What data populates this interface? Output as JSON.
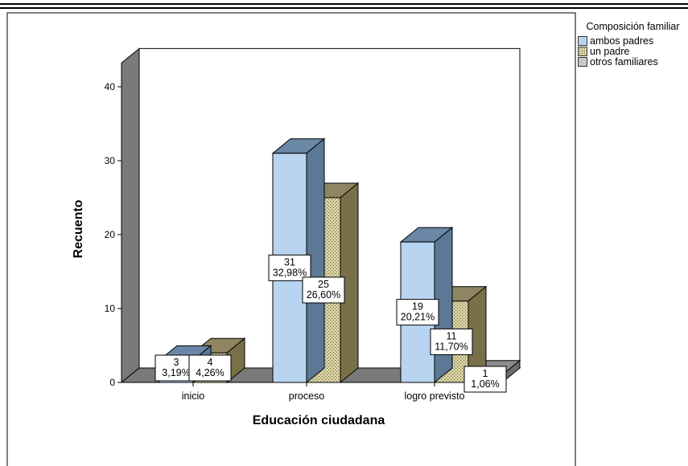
{
  "chart_data": {
    "type": "bar",
    "style": "3d-clustered",
    "xlabel": "Educación ciudadana",
    "ylabel": "Recuento",
    "ylim": [
      0,
      43
    ],
    "yticks": [
      0,
      10,
      20,
      30,
      40
    ],
    "categories": [
      "inicio",
      "proceso",
      "logro previsto"
    ],
    "legend_title": "Composición familiar",
    "legend_position": "right",
    "series": [
      {
        "name": "ambos padres",
        "color": "#b8d4f0",
        "values": [
          3,
          31,
          19
        ],
        "labels": [
          "3\n3,19%",
          "31\n32,98%",
          "19\n20,21%"
        ]
      },
      {
        "name": "un padre",
        "color": "#d8d0a0",
        "pattern": "dotted",
        "values": [
          4,
          25,
          11
        ],
        "labels": [
          "4\n4,26%",
          "25\n26,60%",
          "11\n11,70%"
        ]
      },
      {
        "name": "otros familiares",
        "color": "#c8c8c8",
        "values": [
          0,
          0,
          1
        ],
        "labels": [
          null,
          null,
          "1\n1,06%"
        ]
      }
    ]
  }
}
